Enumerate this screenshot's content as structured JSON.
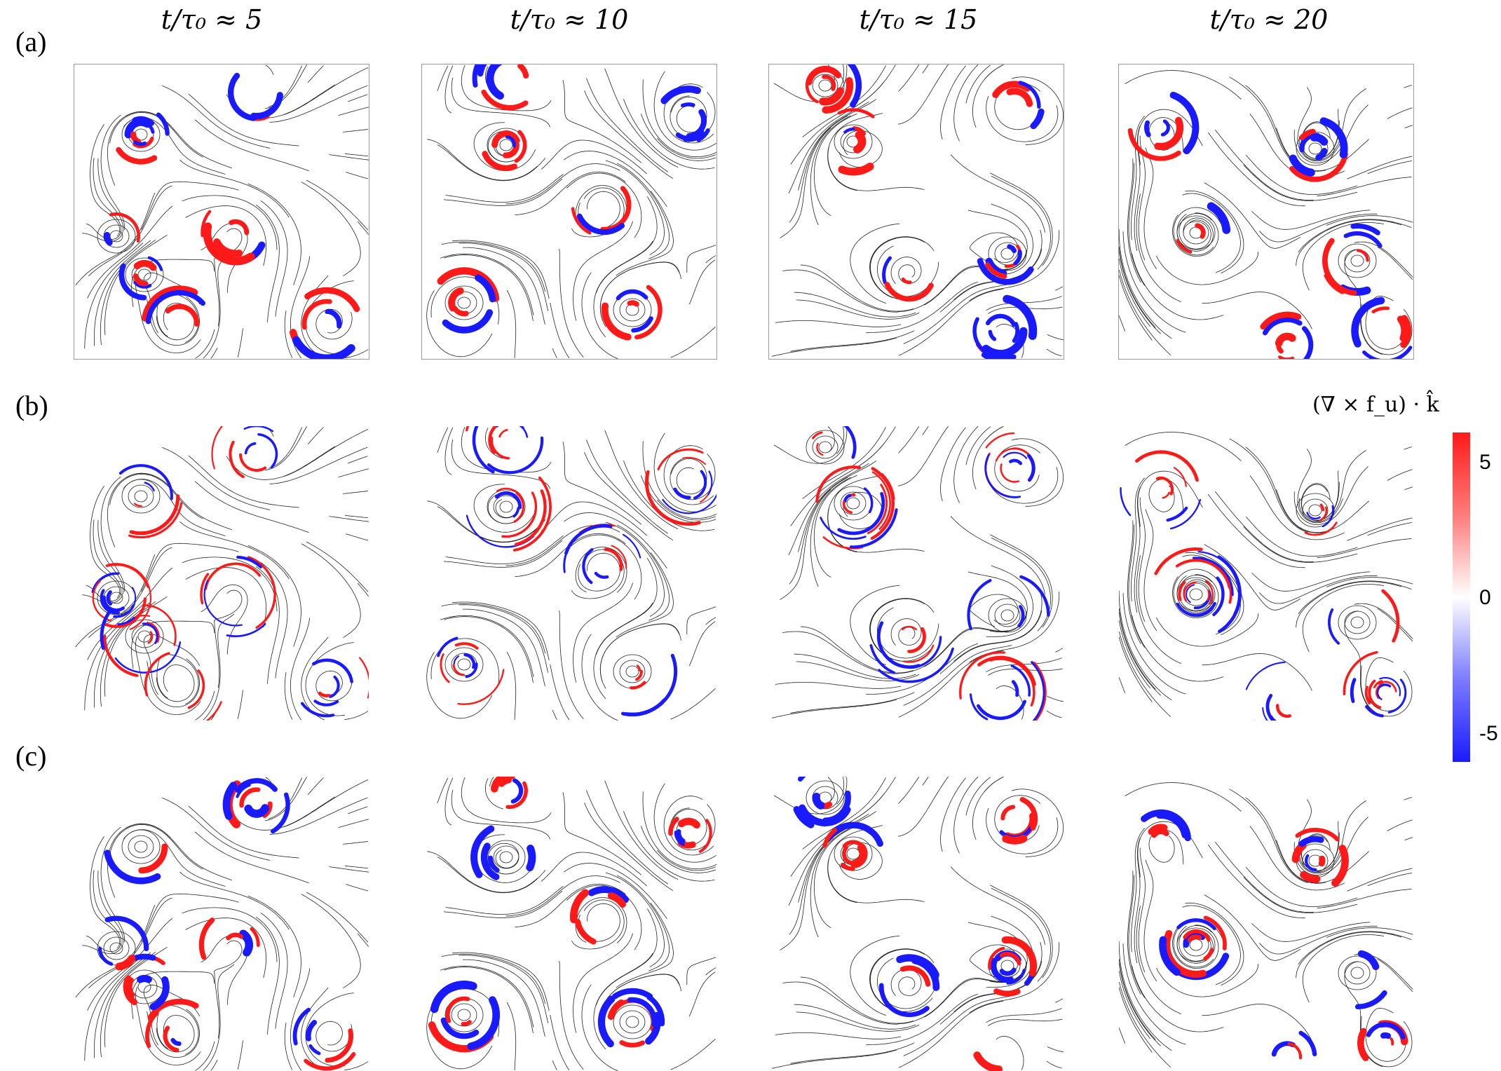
{
  "columns": [
    "t/τ₀ ≈ 5",
    "t/τ₀ ≈ 10",
    "t/τ₀ ≈ 15",
    "t/τ₀ ≈ 20"
  ],
  "rows": [
    "(a)",
    "(b)",
    "(c)"
  ],
  "colorbar": {
    "title": "(∇ × f_u) · k̂",
    "max_label": "5",
    "mid_label": "0",
    "min_label": "-5",
    "colors": {
      "positive": "#ff1a1a",
      "zero": "#ffffff",
      "negative": "#1a1aff"
    }
  },
  "style": {
    "streamline_color": "#222222",
    "positive_color": "#ff1a1a",
    "negative_color": "#1a1aff"
  }
}
